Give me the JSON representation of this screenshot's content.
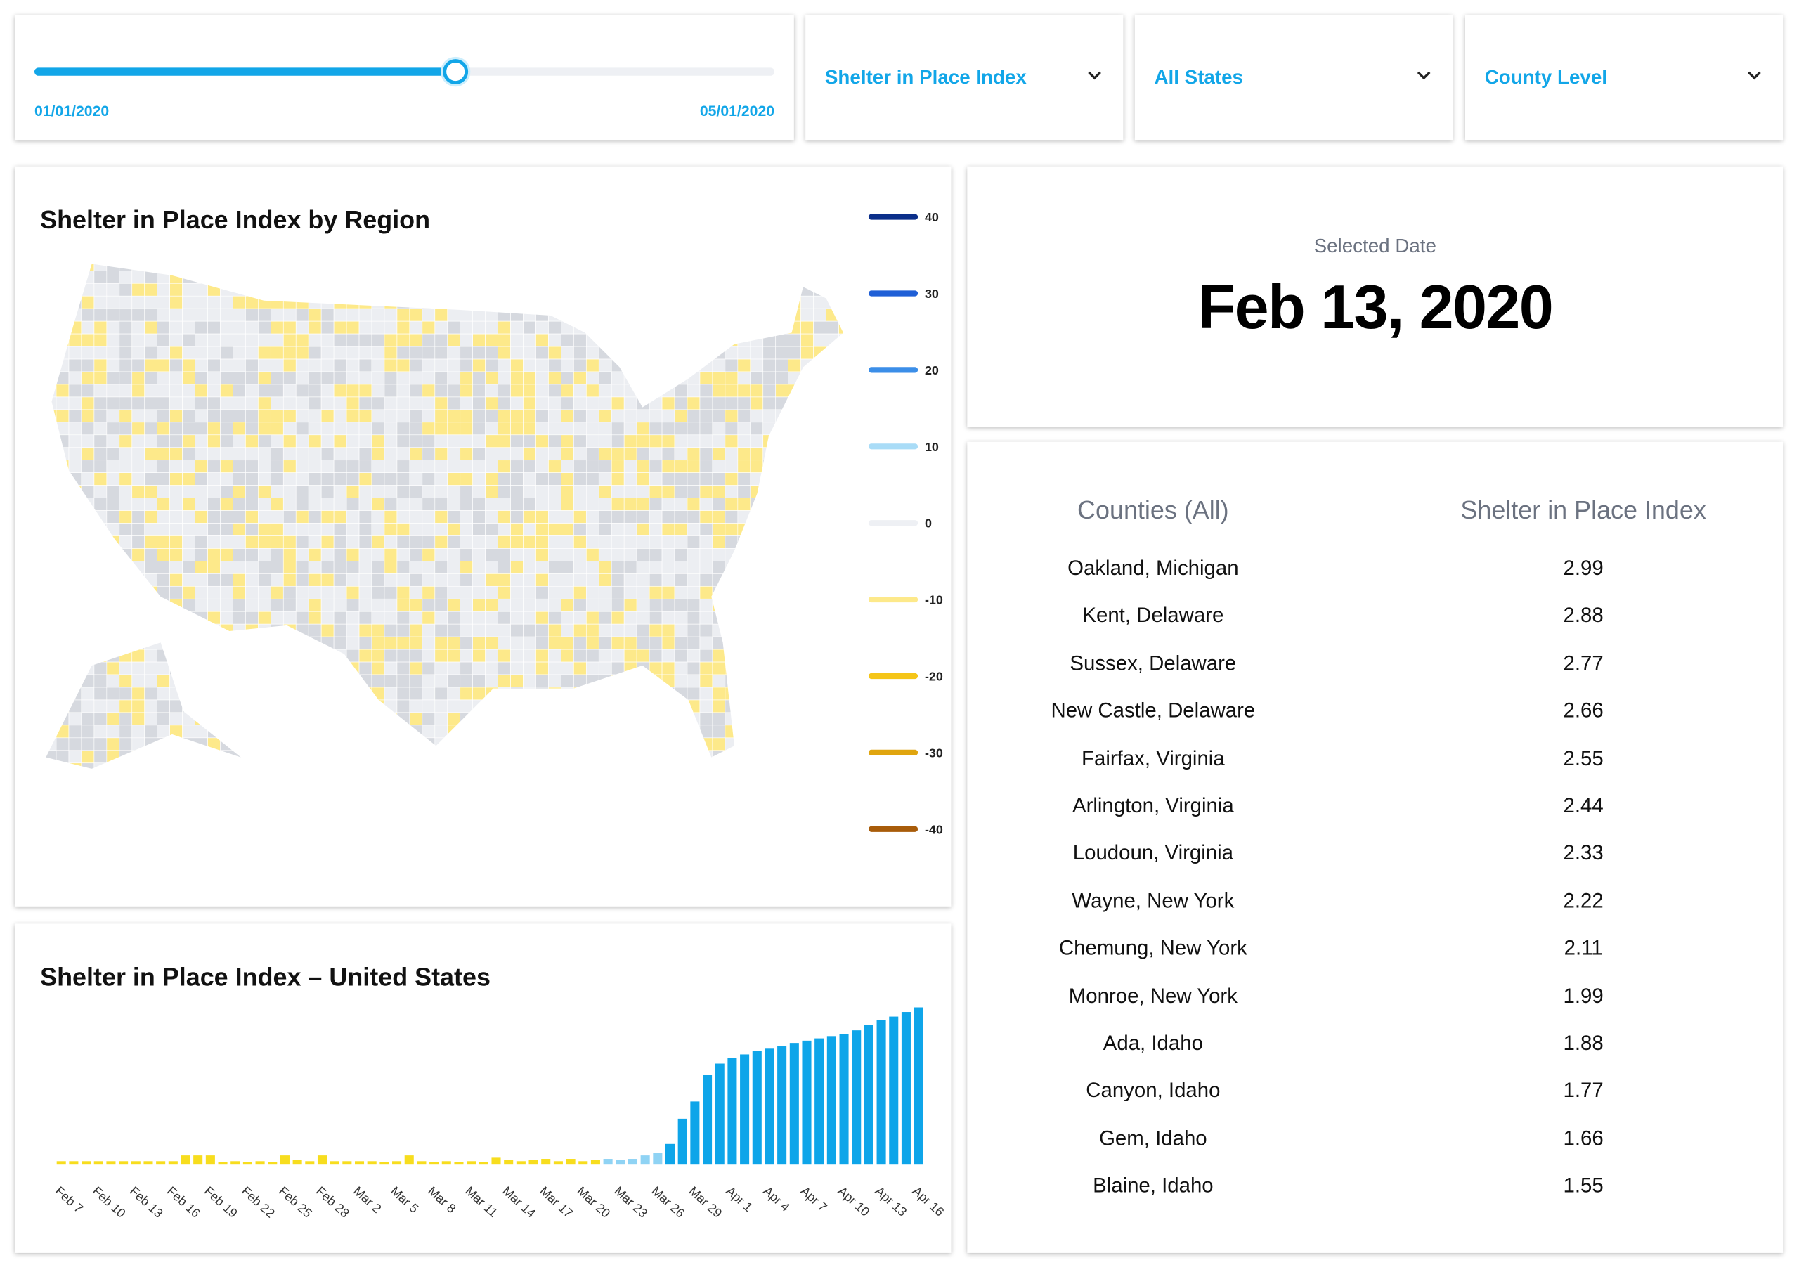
{
  "controls": {
    "date_range": {
      "start": "01/01/2020",
      "end": "05/01/2020"
    },
    "dropdowns": [
      "Shelter in Place Index",
      "All States",
      "County Level"
    ]
  },
  "map": {
    "title": "Shelter in Place Index by Region",
    "legend": {
      "ticks": [
        40,
        30,
        20,
        10,
        0,
        -10,
        -20,
        -30,
        -40
      ],
      "colors": [
        "#0b2f8a",
        "#1f5fd6",
        "#3b8ee8",
        "#a9dcf7",
        "#eef0f4",
        "#fde98a",
        "#f5c518",
        "#e0a50f",
        "#a85c0a"
      ]
    }
  },
  "chart_data": {
    "type": "bar",
    "title": "Shelter in Place Index – United States",
    "categories": [
      "Feb 7",
      null,
      null,
      "Feb 10",
      null,
      null,
      "Feb 13",
      null,
      null,
      "Feb 16",
      null,
      null,
      "Feb 19",
      null,
      null,
      "Feb 22",
      null,
      null,
      "Feb 25",
      null,
      null,
      "Feb 28",
      null,
      null,
      "Mar 2",
      null,
      null,
      "Mar 5",
      null,
      null,
      "Mar 8",
      null,
      null,
      "Mar 11",
      null,
      null,
      "Mar 14",
      null,
      null,
      "Mar 17",
      null,
      null,
      "Mar 20",
      null,
      null,
      "Mar 23",
      null,
      null,
      "Mar 26",
      null,
      null,
      "Mar 29",
      null,
      null,
      "Apr 1",
      null,
      null,
      "Apr 4",
      null,
      null,
      "Apr 7",
      null,
      null,
      "Apr 10",
      null,
      null,
      "Apr 13",
      null,
      null,
      "Apr 16"
    ],
    "values": [
      3,
      3,
      3,
      3,
      3,
      3,
      3,
      3,
      3,
      3,
      8,
      8,
      8,
      2,
      3,
      2,
      3,
      2,
      8,
      4,
      3,
      8,
      3,
      3,
      3,
      3,
      2,
      3,
      8,
      3,
      2,
      3,
      2,
      3,
      2,
      6,
      4,
      3,
      4,
      5,
      3,
      5,
      3,
      4,
      5,
      4,
      5,
      8,
      10,
      18,
      40,
      55,
      78,
      88,
      93,
      96,
      99,
      101,
      103,
      106,
      108,
      110,
      112,
      114,
      117,
      122,
      126,
      129,
      133,
      137
    ],
    "colors": [
      "#f7dd1e",
      "#f7dd1e",
      "#f7dd1e",
      "#f7dd1e",
      "#f7dd1e",
      "#f7dd1e",
      "#f7dd1e",
      "#f7dd1e",
      "#f7dd1e",
      "#f7dd1e",
      "#f7dd1e",
      "#f7dd1e",
      "#f7dd1e",
      "#f7dd1e",
      "#f7dd1e",
      "#f7dd1e",
      "#f7dd1e",
      "#f7dd1e",
      "#f7dd1e",
      "#f7dd1e",
      "#f7dd1e",
      "#f7dd1e",
      "#f7dd1e",
      "#f7dd1e",
      "#f7dd1e",
      "#f7dd1e",
      "#f7dd1e",
      "#f7dd1e",
      "#f7dd1e",
      "#f7dd1e",
      "#f7dd1e",
      "#f7dd1e",
      "#f7dd1e",
      "#f7dd1e",
      "#f7dd1e",
      "#f7dd1e",
      "#f7dd1e",
      "#f7dd1e",
      "#f7dd1e",
      "#f7dd1e",
      "#f7dd1e",
      "#f7dd1e",
      "#f7dd1e",
      "#f7dd1e",
      "#8fd3f4",
      "#8fd3f4",
      "#8fd3f4",
      "#8fd3f4",
      "#8fd3f4",
      "#0ea5e9",
      "#0ea5e9",
      "#0ea5e9",
      "#0ea5e9",
      "#0ea5e9",
      "#0ea5e9",
      "#0ea5e9",
      "#0ea5e9",
      "#0ea5e9",
      "#0ea5e9",
      "#0ea5e9",
      "#0ea5e9",
      "#0ea5e9",
      "#0ea5e9",
      "#0ea5e9",
      "#0ea5e9",
      "#0ea5e9",
      "#0ea5e9",
      "#0ea5e9",
      "#0ea5e9",
      "#0ea5e9"
    ]
  },
  "selected": {
    "label": "Selected Date",
    "date": "Feb 13, 2020"
  },
  "table": {
    "headers": [
      "Counties (All)",
      "Shelter in Place Index"
    ],
    "rows": [
      [
        "Oakland, Michigan",
        2.99
      ],
      [
        "Kent, Delaware",
        2.88
      ],
      [
        "Sussex, Delaware",
        2.77
      ],
      [
        "New Castle, Delaware",
        2.66
      ],
      [
        "Fairfax, Virginia",
        2.55
      ],
      [
        "Arlington, Virginia",
        2.44
      ],
      [
        "Loudoun, Virginia",
        2.33
      ],
      [
        "Wayne, New York",
        2.22
      ],
      [
        "Chemung, New York",
        2.11
      ],
      [
        "Monroe, New York",
        1.99
      ],
      [
        "Ada, Idaho",
        1.88
      ],
      [
        "Canyon, Idaho",
        1.77
      ],
      [
        "Gem, Idaho",
        1.66
      ],
      [
        "Blaine, Idaho",
        1.55
      ]
    ]
  }
}
